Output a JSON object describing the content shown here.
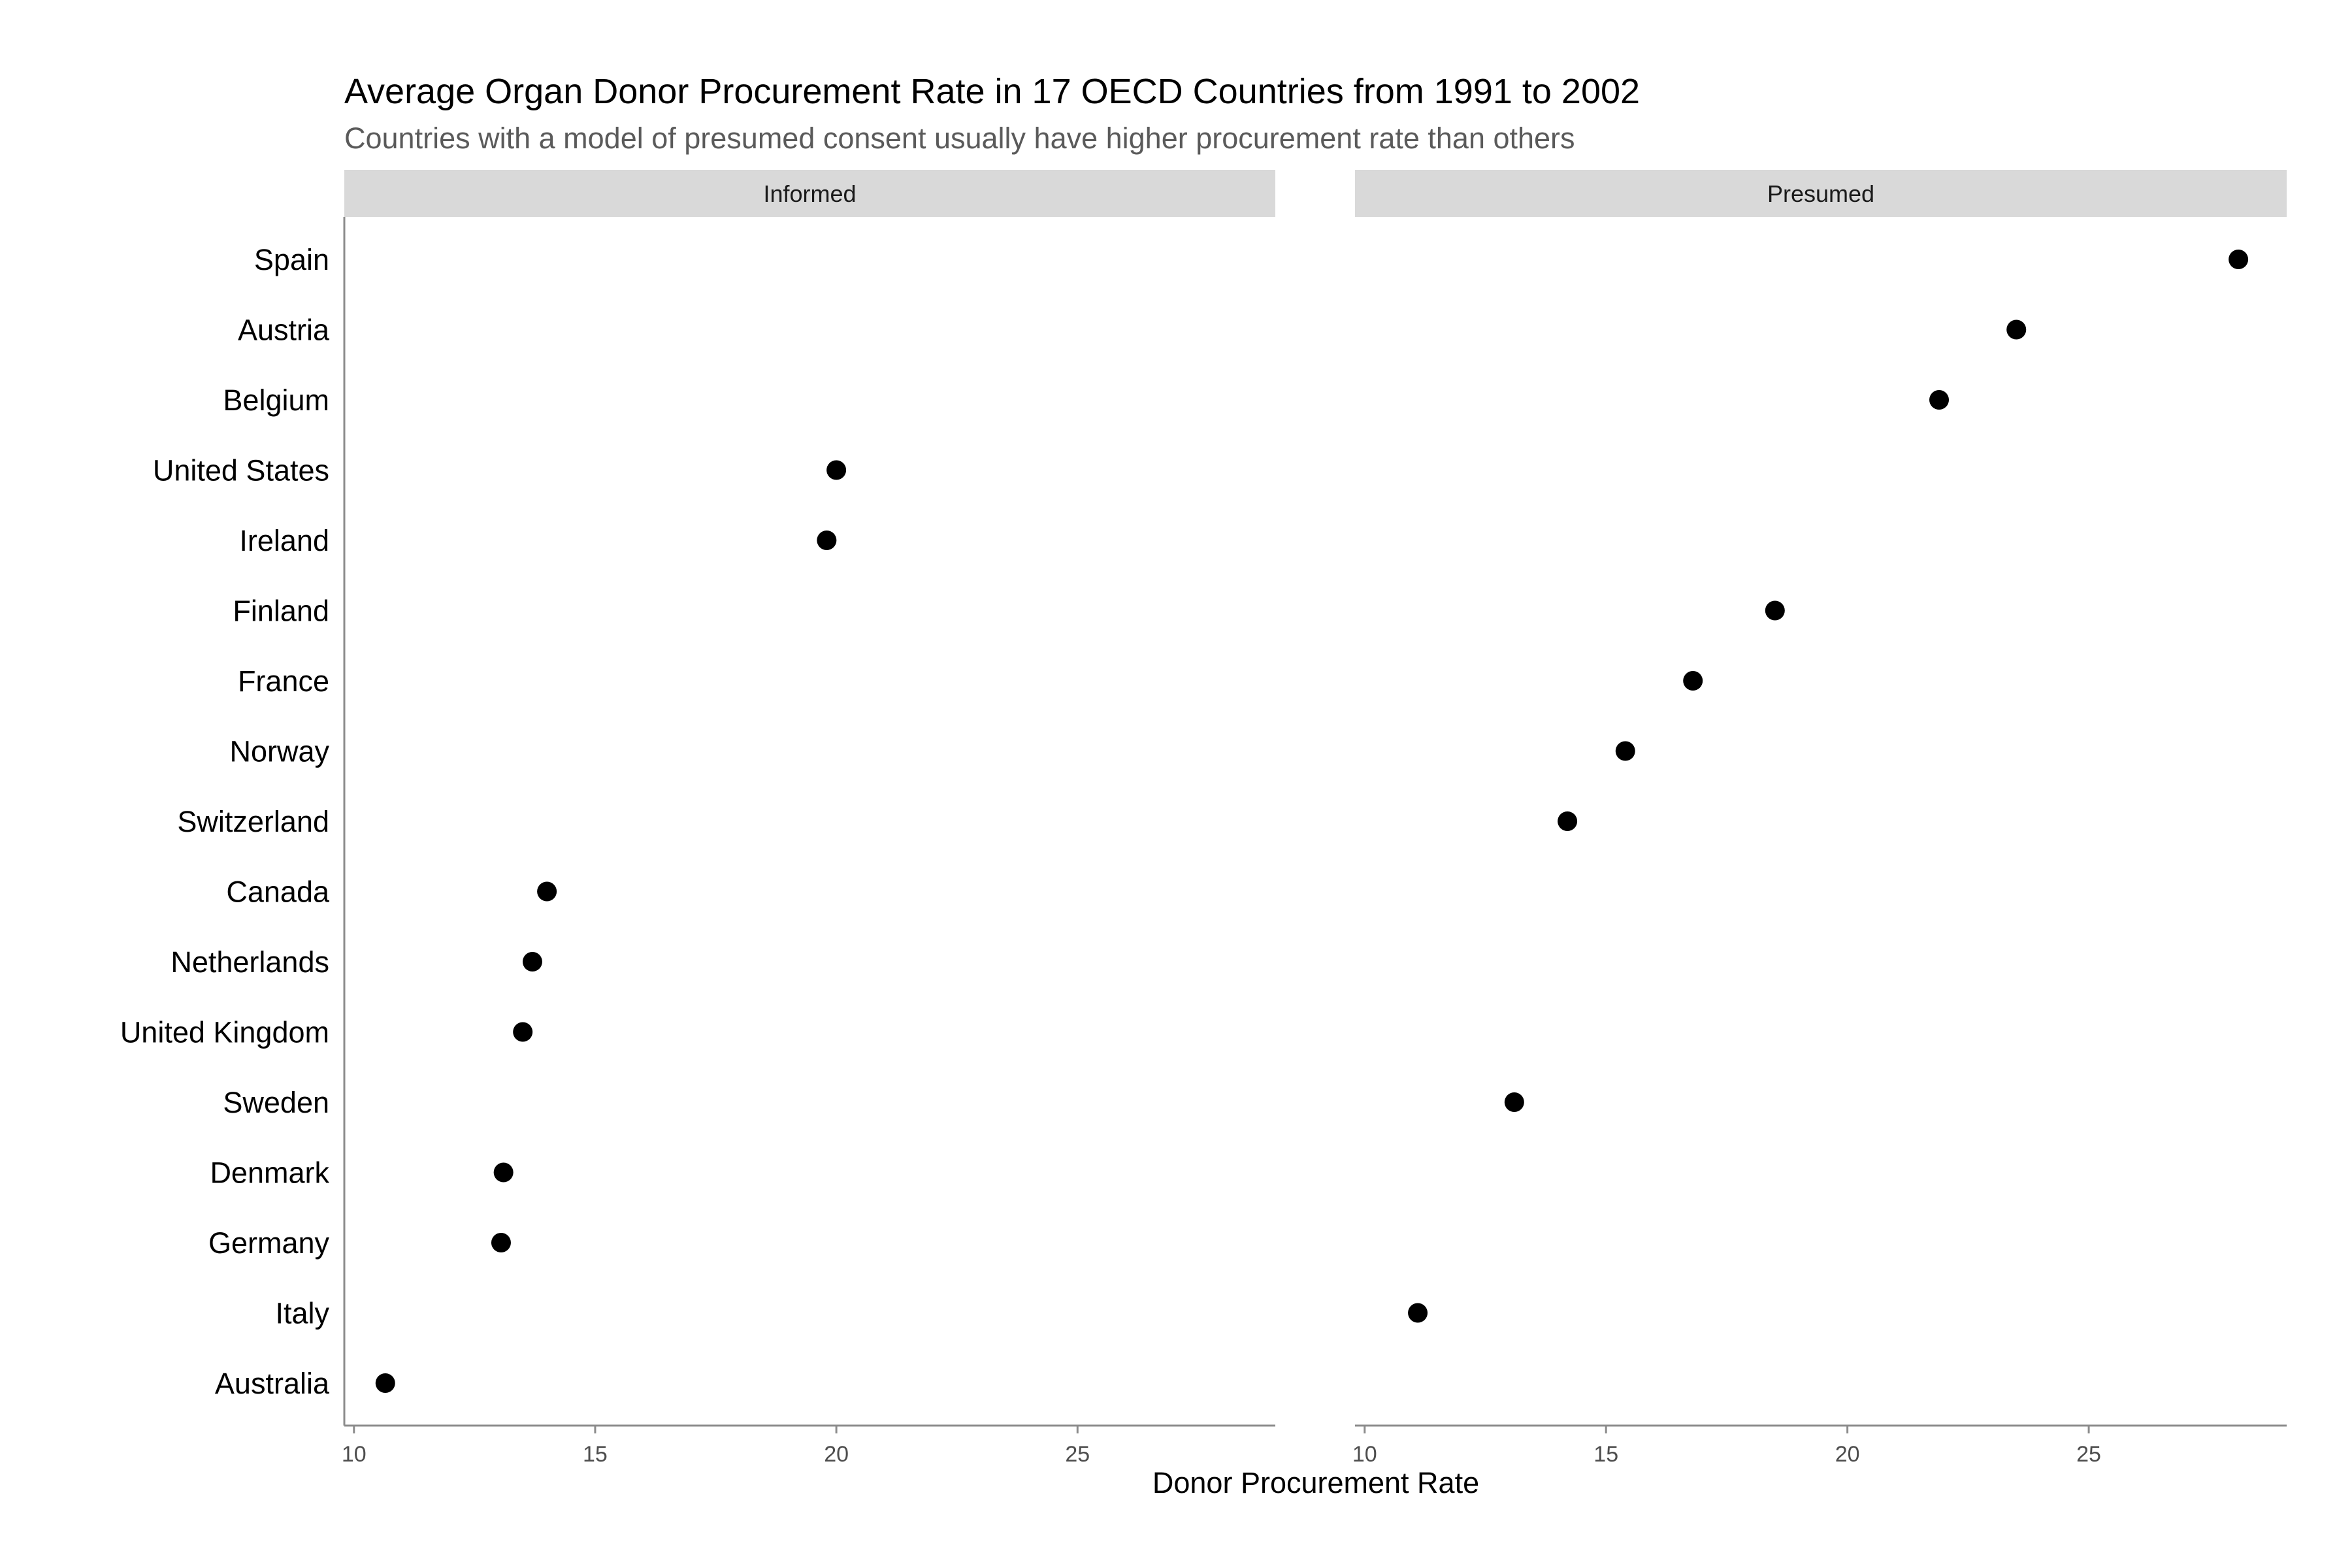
{
  "chart_data": {
    "type": "scatter",
    "title": "Average Organ Donor Procurement Rate in 17 OECD Countries from 1991 to 2002",
    "subtitle": "Countries with a model of presumed consent usually have higher procurement rate than others",
    "xlabel": "Donor Procurement Rate",
    "ylabel": "",
    "xlim": [
      9.8,
      29.1
    ],
    "x_ticks": [
      10,
      15,
      20,
      25
    ],
    "grid": false,
    "countries": [
      "Spain",
      "Austria",
      "Belgium",
      "United States",
      "Ireland",
      "Finland",
      "France",
      "Norway",
      "Switzerland",
      "Canada",
      "Netherlands",
      "United Kingdom",
      "Sweden",
      "Denmark",
      "Germany",
      "Italy",
      "Australia"
    ],
    "panels": [
      {
        "name": "Informed",
        "points": [
          {
            "country": "United States",
            "x": 20.0
          },
          {
            "country": "Ireland",
            "x": 19.8
          },
          {
            "country": "Canada",
            "x": 14.0
          },
          {
            "country": "Netherlands",
            "x": 13.7
          },
          {
            "country": "United Kingdom",
            "x": 13.5
          },
          {
            "country": "Denmark",
            "x": 13.1
          },
          {
            "country": "Germany",
            "x": 13.05
          },
          {
            "country": "Australia",
            "x": 10.65
          }
        ]
      },
      {
        "name": "Presumed",
        "points": [
          {
            "country": "Spain",
            "x": 28.1
          },
          {
            "country": "Austria",
            "x": 23.5
          },
          {
            "country": "Belgium",
            "x": 21.9
          },
          {
            "country": "Finland",
            "x": 18.5
          },
          {
            "country": "France",
            "x": 16.8
          },
          {
            "country": "Norway",
            "x": 15.4
          },
          {
            "country": "Switzerland",
            "x": 14.2
          },
          {
            "country": "Sweden",
            "x": 13.1
          },
          {
            "country": "Italy",
            "x": 11.1
          }
        ]
      }
    ]
  }
}
